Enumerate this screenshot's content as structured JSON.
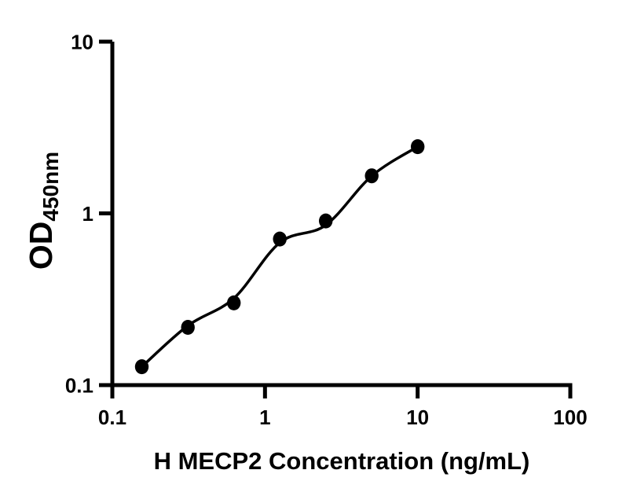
{
  "page": {
    "background": "#ffffff"
  },
  "chart_data": {
    "type": "scatter",
    "title": "",
    "xlabel": "H MECP2 Concentration (ng/mL)",
    "ylabel_base": "OD",
    "ylabel_sub": "450nm",
    "x_scale": "log",
    "y_scale": "log",
    "xlim": [
      0.1,
      100
    ],
    "ylim": [
      0.1,
      10
    ],
    "grid": false,
    "legend": null,
    "marker": "filled-circle",
    "colors": {
      "axis": "#000000",
      "text": "#000000",
      "marker": "#000000",
      "curve": "#000000",
      "background": "#ffffff"
    },
    "x_ticks": [
      {
        "v": 0.1,
        "label": "0.1"
      },
      {
        "v": 1,
        "label": "1"
      },
      {
        "v": 10,
        "label": "10"
      },
      {
        "v": 100,
        "label": "100"
      }
    ],
    "y_ticks": [
      {
        "v": 0.1,
        "label": "0.1"
      },
      {
        "v": 1,
        "label": "1"
      },
      {
        "v": 10,
        "label": "10"
      }
    ],
    "points": [
      {
        "x": 0.156,
        "y": 0.128
      },
      {
        "x": 0.3125,
        "y": 0.217
      },
      {
        "x": 0.625,
        "y": 0.301
      },
      {
        "x": 1.25,
        "y": 0.709
      },
      {
        "x": 2.5,
        "y": 0.904
      },
      {
        "x": 5,
        "y": 1.654
      },
      {
        "x": 10,
        "y": 2.446
      }
    ],
    "fit_curve": [
      [
        0.156,
        0.128
      ],
      [
        0.3125,
        0.222
      ],
      [
        0.625,
        0.32
      ],
      [
        1.25,
        0.676
      ],
      [
        2.5,
        0.855
      ],
      [
        5,
        1.652
      ],
      [
        10,
        2.446
      ]
    ]
  }
}
